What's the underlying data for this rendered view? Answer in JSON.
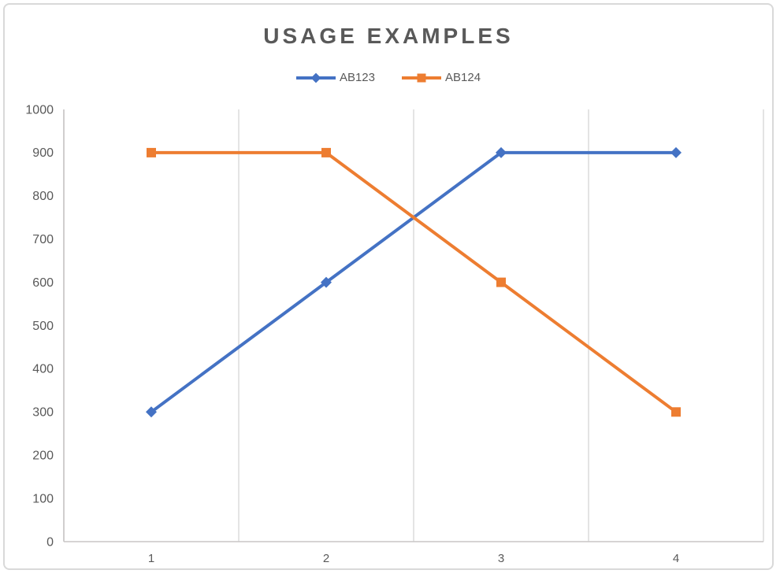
{
  "chart_data": {
    "type": "line",
    "title": "USAGE EXAMPLES",
    "categories": [
      "1",
      "2",
      "3",
      "4"
    ],
    "series": [
      {
        "name": "AB123",
        "values": [
          300,
          600,
          900,
          900
        ],
        "color": "#4472C4",
        "marker": "diamond"
      },
      {
        "name": "AB124",
        "values": [
          900,
          900,
          600,
          300
        ],
        "color": "#ED7D31",
        "marker": "square"
      }
    ],
    "yticks": [
      0,
      100,
      200,
      300,
      400,
      500,
      600,
      700,
      800,
      900,
      1000
    ],
    "ylim": [
      0,
      1000
    ],
    "xlabel": "",
    "ylabel": "",
    "grid": "vertical-only",
    "legend_position": "top-center",
    "style": {
      "gridline_color": "#d9d9d9",
      "axis_line_color": "#c8c6c6",
      "tick_label_color": "#595959",
      "title_color": "#595959",
      "background": "#ffffff",
      "frame_border_color": "#d9d9d9"
    }
  }
}
